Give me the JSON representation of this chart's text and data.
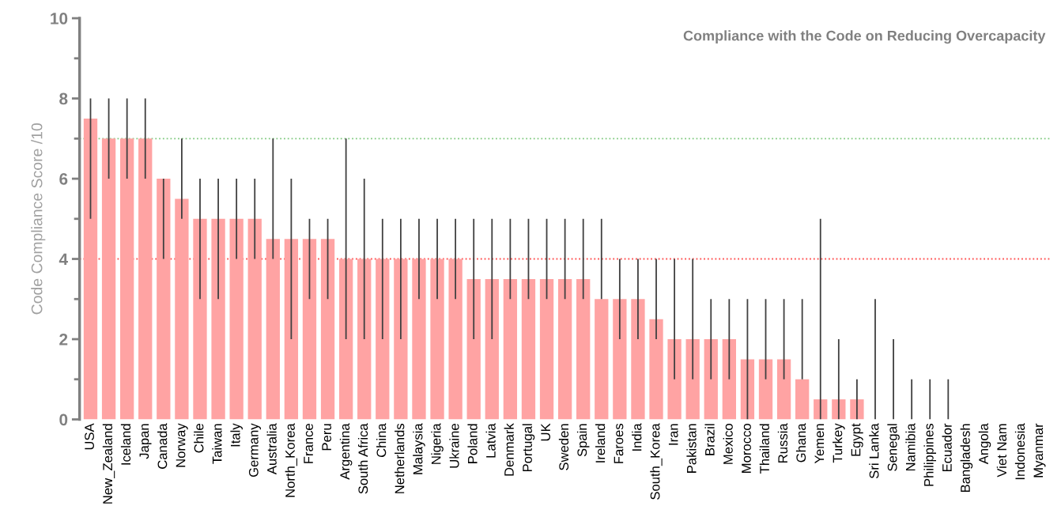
{
  "chart_data": {
    "type": "bar",
    "title": "Compliance with the Code on Reducing Overcapacity",
    "ylabel": "Code Compliance Score /10",
    "categories": [
      "USA",
      "New_Zealand",
      "Iceland",
      "Japan",
      "Canada",
      "Norway",
      "Chile",
      "Taiwan",
      "Italy",
      "Germany",
      "Australia",
      "North_Korea",
      "France",
      "Peru",
      "Argentina",
      "South Africa",
      "China",
      "Netherlands",
      "Malaysia",
      "Nigeria",
      "Ukraine",
      "Poland",
      "Latvia",
      "Denmark",
      "Portugal",
      "UK",
      "Sweden",
      "Spain",
      "Ireland",
      "Faroes",
      "India",
      "South_Korea",
      "Iran",
      "Pakistan",
      "Brazil",
      "Mexico",
      "Morocco",
      "Thailand",
      "Russia",
      "Ghana",
      "Yemen",
      "Turkey",
      "Egypt",
      "Sri Lanka",
      "Senegal",
      "Namibia",
      "Philippines",
      "Ecuador",
      "Bangladesh",
      "Angola",
      "Viet Nam",
      "Indonesia",
      "Myanmar"
    ],
    "values": [
      7.5,
      7,
      7,
      7,
      6,
      5.5,
      5,
      5,
      5,
      5,
      4.5,
      4.5,
      4.5,
      4.5,
      4,
      4,
      4,
      4,
      4,
      4,
      4,
      3.5,
      3.5,
      3.5,
      3.5,
      3.5,
      3.5,
      3.5,
      3,
      3,
      3,
      2.5,
      2,
      2,
      2,
      2,
      1.5,
      1.5,
      1.5,
      1,
      0.5,
      0.5,
      0.5,
      0,
      0,
      0,
      0,
      0,
      0,
      0,
      0,
      0,
      0
    ],
    "errors": [
      [
        5,
        8
      ],
      [
        6,
        8
      ],
      [
        6,
        8
      ],
      [
        6,
        8
      ],
      [
        4,
        6
      ],
      [
        5,
        7
      ],
      [
        3,
        6
      ],
      [
        3,
        6
      ],
      [
        4,
        6
      ],
      [
        4,
        6
      ],
      [
        4,
        7
      ],
      [
        2,
        6
      ],
      [
        3,
        5
      ],
      [
        3,
        5
      ],
      [
        2,
        7
      ],
      [
        2,
        6
      ],
      [
        2,
        5
      ],
      [
        2,
        5
      ],
      [
        3,
        5
      ],
      [
        3,
        5
      ],
      [
        3,
        5
      ],
      [
        2,
        5
      ],
      [
        2,
        5
      ],
      [
        3,
        5
      ],
      [
        3,
        5
      ],
      [
        3,
        5
      ],
      [
        3,
        5
      ],
      [
        3,
        5
      ],
      [
        3,
        5
      ],
      [
        2,
        4
      ],
      [
        2,
        4
      ],
      [
        2,
        4
      ],
      [
        1,
        4
      ],
      [
        1,
        4
      ],
      [
        1,
        3
      ],
      [
        1,
        3
      ],
      [
        0,
        3
      ],
      [
        1,
        3
      ],
      [
        1,
        3
      ],
      [
        1,
        3
      ],
      [
        0,
        5
      ],
      [
        0,
        2
      ],
      [
        0,
        1
      ],
      [
        0,
        3
      ],
      [
        0,
        2
      ],
      [
        0,
        1
      ],
      [
        0,
        1
      ],
      [
        0,
        1
      ],
      null,
      null,
      null,
      null,
      null
    ],
    "color": "#ffa3a3",
    "ylim": [
      0,
      10
    ],
    "yticks": [
      0,
      {
        "value": 1,
        "label": null
      },
      2,
      {
        "value": 3,
        "label": null
      },
      4,
      {
        "value": 5,
        "label": null
      },
      6,
      {
        "value": 7,
        "label": null
      },
      8,
      {
        "value": 9,
        "label": null
      },
      10
    ],
    "ref_lines": [
      {
        "axis": "y",
        "value": 7,
        "color": "#7fc97f",
        "line_style": "dotted"
      },
      {
        "axis": "y",
        "value": 4,
        "color": "#ff5050",
        "line_style": "dotted"
      }
    ],
    "grid": false,
    "legend": false
  }
}
